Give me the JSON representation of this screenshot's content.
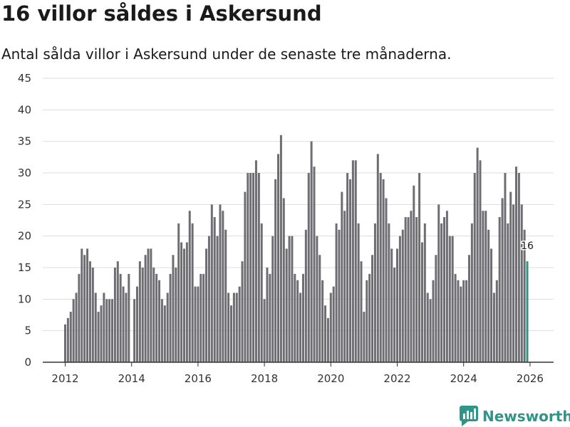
{
  "header": {
    "title": "16 villor såldes i Askersund",
    "subtitle": "Antal sålda villor i Askersund under de senaste tre månaderna."
  },
  "brand": {
    "name": "Newsworthy",
    "icon": "newsworthy-logo-icon"
  },
  "colors": {
    "bar": "#6e6d72",
    "highlight": "#2e9688",
    "grid": "#dddddd",
    "axis": "#333333"
  },
  "chart_data": {
    "type": "bar",
    "title": "16 villor såldes i Askersund",
    "subtitle": "Antal sålda villor i Askersund under de senaste tre månaderna.",
    "xlabel": "",
    "ylabel": "",
    "ylim": [
      0,
      45
    ],
    "yticks": [
      "0",
      "5",
      "10",
      "15",
      "20",
      "25",
      "30",
      "35",
      "40",
      "45"
    ],
    "xticks": [
      "2012",
      "2014",
      "2016",
      "2018",
      "2020",
      "2022",
      "2024",
      "2026"
    ],
    "start": "2012-01",
    "end": "2026-01",
    "series": [
      {
        "name": "Antal sålda villor",
        "values": [
          6,
          7,
          8,
          10,
          11,
          14,
          18,
          17,
          18,
          16,
          15,
          11,
          8,
          9,
          11,
          10,
          10,
          10,
          15,
          16,
          14,
          12,
          11,
          14,
          0,
          10,
          12,
          16,
          15,
          17,
          18,
          18,
          15,
          14,
          13,
          10,
          9,
          11,
          14,
          17,
          15,
          22,
          19,
          18,
          19,
          24,
          22,
          12,
          12,
          14,
          14,
          18,
          20,
          25,
          23,
          20,
          25,
          24,
          21,
          11,
          9,
          11,
          11,
          12,
          16,
          27,
          30,
          30,
          30,
          32,
          30,
          22,
          10,
          15,
          14,
          20,
          29,
          33,
          36,
          26,
          18,
          20,
          20,
          14,
          13,
          11,
          14,
          21,
          30,
          35,
          31,
          20,
          17,
          13,
          9,
          7,
          11,
          12,
          22,
          21,
          27,
          24,
          30,
          29,
          32,
          32,
          22,
          16,
          8,
          13,
          14,
          17,
          22,
          33,
          30,
          29,
          26,
          22,
          18,
          15,
          18,
          20,
          21,
          23,
          23,
          24,
          28,
          23,
          30,
          19,
          22,
          11,
          10,
          13,
          17,
          25,
          22,
          23,
          24,
          20,
          20,
          14,
          13,
          12,
          13,
          13,
          17,
          22,
          30,
          34,
          32,
          24,
          24,
          21,
          18,
          11,
          13,
          23,
          26,
          30,
          22,
          27,
          25,
          31,
          30,
          25,
          21,
          16
        ]
      }
    ],
    "annotations": [
      {
        "label": "16",
        "target": "last"
      }
    ]
  }
}
